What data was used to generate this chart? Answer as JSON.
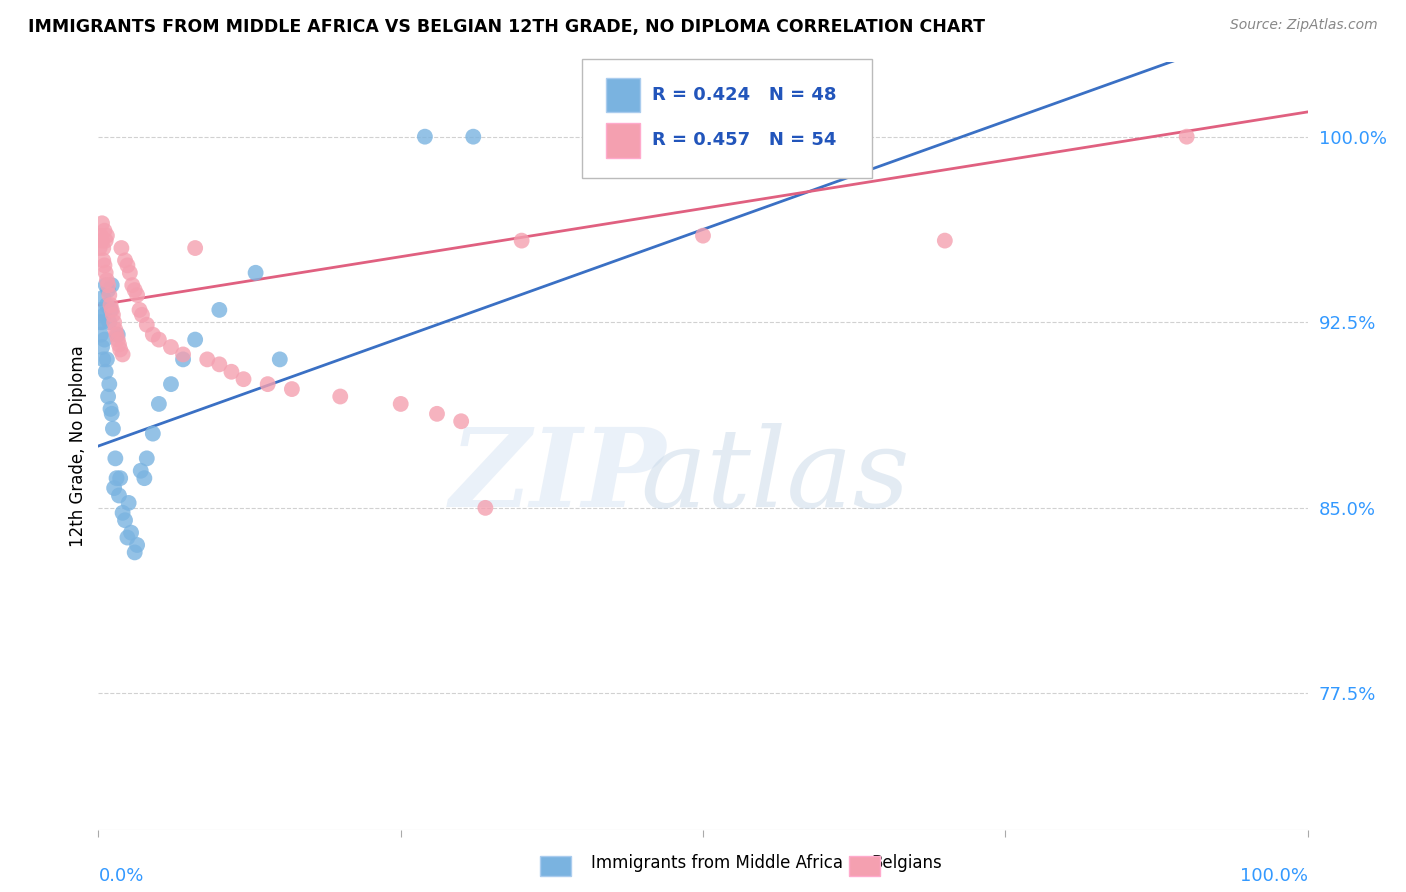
{
  "title": "IMMIGRANTS FROM MIDDLE AFRICA VS BELGIAN 12TH GRADE, NO DIPLOMA CORRELATION CHART",
  "source": "Source: ZipAtlas.com",
  "ylabel": "12th Grade, No Diploma",
  "ylabel_ticks": [
    0.775,
    0.85,
    0.925,
    1.0
  ],
  "ylabel_labels": [
    "77.5%",
    "85.0%",
    "92.5%",
    "100.0%"
  ],
  "xlim": [
    0.0,
    1.0
  ],
  "ylim": [
    0.72,
    1.03
  ],
  "blue_R": 0.424,
  "blue_N": 48,
  "pink_R": 0.457,
  "pink_N": 54,
  "blue_color": "#7ab3e0",
  "pink_color": "#f4a0b0",
  "blue_line_color": "#3a70c4",
  "pink_line_color": "#e06080",
  "legend_blue_label": "Immigrants from Middle Africa",
  "legend_pink_label": "Belgians",
  "blue_x": [
    0.001,
    0.002,
    0.002,
    0.003,
    0.003,
    0.004,
    0.004,
    0.005,
    0.005,
    0.006,
    0.006,
    0.007,
    0.007,
    0.008,
    0.008,
    0.009,
    0.009,
    0.01,
    0.01,
    0.011,
    0.011,
    0.012,
    0.013,
    0.014,
    0.015,
    0.016,
    0.017,
    0.018,
    0.02,
    0.022,
    0.024,
    0.025,
    0.027,
    0.03,
    0.032,
    0.035,
    0.038,
    0.04,
    0.045,
    0.05,
    0.06,
    0.07,
    0.08,
    0.1,
    0.13,
    0.15,
    0.27,
    0.31
  ],
  "blue_y": [
    0.925,
    0.93,
    0.92,
    0.915,
    0.925,
    0.91,
    0.935,
    0.928,
    0.918,
    0.94,
    0.905,
    0.932,
    0.91,
    0.938,
    0.895,
    0.925,
    0.9,
    0.89,
    0.93,
    0.888,
    0.94,
    0.882,
    0.858,
    0.87,
    0.862,
    0.92,
    0.855,
    0.862,
    0.848,
    0.845,
    0.838,
    0.852,
    0.84,
    0.832,
    0.835,
    0.865,
    0.862,
    0.87,
    0.88,
    0.892,
    0.9,
    0.91,
    0.918,
    0.93,
    0.945,
    0.91,
    1.0,
    1.0
  ],
  "pink_x": [
    0.001,
    0.002,
    0.003,
    0.003,
    0.004,
    0.004,
    0.005,
    0.005,
    0.006,
    0.006,
    0.007,
    0.007,
    0.008,
    0.009,
    0.01,
    0.011,
    0.012,
    0.013,
    0.014,
    0.015,
    0.016,
    0.017,
    0.018,
    0.019,
    0.02,
    0.022,
    0.024,
    0.026,
    0.028,
    0.03,
    0.032,
    0.034,
    0.036,
    0.04,
    0.045,
    0.05,
    0.06,
    0.07,
    0.08,
    0.09,
    0.1,
    0.11,
    0.12,
    0.14,
    0.16,
    0.2,
    0.25,
    0.28,
    0.3,
    0.32,
    0.35,
    0.5,
    0.7,
    0.9
  ],
  "pink_y": [
    0.955,
    0.96,
    0.958,
    0.965,
    0.95,
    0.955,
    0.948,
    0.962,
    0.945,
    0.958,
    0.942,
    0.96,
    0.94,
    0.936,
    0.932,
    0.93,
    0.928,
    0.925,
    0.922,
    0.92,
    0.918,
    0.916,
    0.914,
    0.955,
    0.912,
    0.95,
    0.948,
    0.945,
    0.94,
    0.938,
    0.936,
    0.93,
    0.928,
    0.924,
    0.92,
    0.918,
    0.915,
    0.912,
    0.955,
    0.91,
    0.908,
    0.905,
    0.902,
    0.9,
    0.898,
    0.895,
    0.892,
    0.888,
    0.885,
    0.85,
    0.958,
    0.96,
    0.958,
    1.0
  ]
}
